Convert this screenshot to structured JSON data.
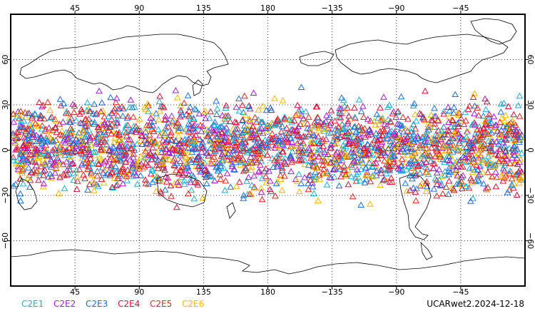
{
  "map": {
    "projection": "cylindrical-equidistant",
    "lon_ticks": [
      "45",
      "90",
      "135",
      "180",
      "−135",
      "−90",
      "−45"
    ],
    "lat_ticks": [
      "60",
      "30",
      "0",
      "−30",
      "−60"
    ],
    "grid": "dotted",
    "lat_coverage": [
      -40,
      45
    ],
    "marker": "triangle"
  },
  "legend": {
    "items": [
      {
        "label": "C2E1",
        "color": "#1ab0d6"
      },
      {
        "label": "C2E2",
        "color": "#a020c8"
      },
      {
        "label": "C2E3",
        "color": "#1e6fd8"
      },
      {
        "label": "C2E4",
        "color": "#d8103a"
      },
      {
        "label": "C2E5",
        "color": "#e8281e"
      },
      {
        "label": "C2E6",
        "color": "#f4b800"
      }
    ]
  },
  "dataset_label": "UCARwet2.2024-12-18"
}
